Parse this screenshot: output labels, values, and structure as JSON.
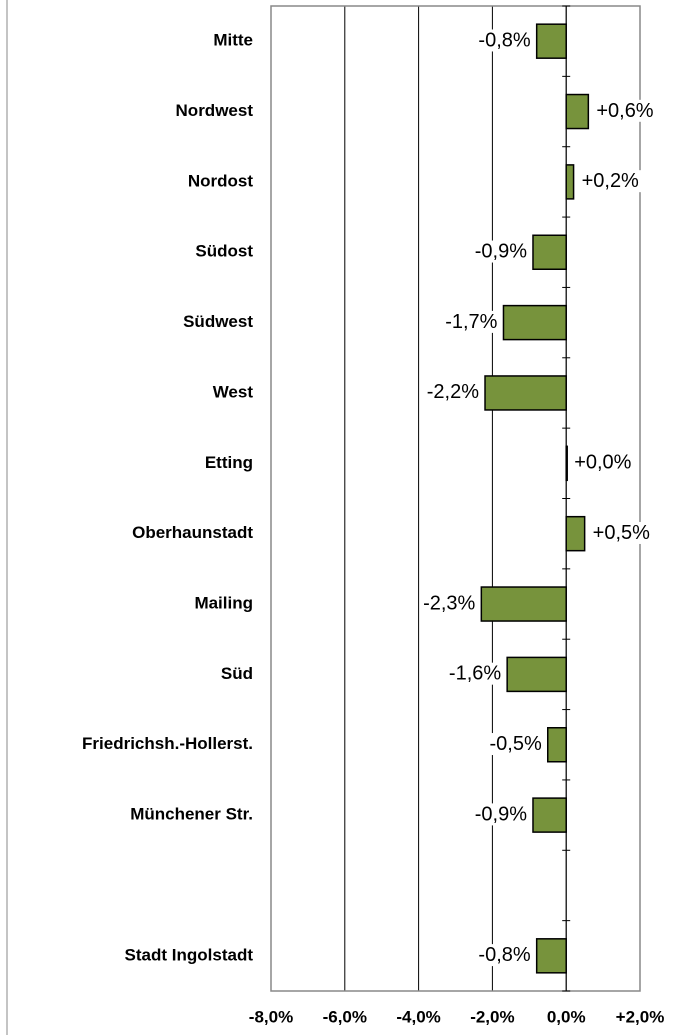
{
  "chart_data": {
    "type": "bar",
    "orientation": "horizontal",
    "categories": [
      "Mitte",
      "Nordwest",
      "Nordost",
      "Südost",
      "Südwest",
      "West",
      "Etting",
      "Oberhaunstadt",
      "Mailing",
      "Süd",
      "Friedrichsh.-Hollerst.",
      "Münchener Str.",
      null,
      "Stadt Ingolstadt"
    ],
    "values": [
      -0.8,
      0.6,
      0.2,
      -0.9,
      -1.7,
      -2.2,
      0.0,
      0.5,
      -2.3,
      -1.6,
      -0.5,
      -0.9,
      null,
      -0.8
    ],
    "value_labels": [
      "-0,8%",
      "+0,6%",
      "+0,2%",
      "-0,9%",
      "-1,7%",
      "-2,2%",
      "+0,0%",
      "+0,5%",
      "-2,3%",
      "-1,6%",
      "-0,5%",
      "-0,9%",
      null,
      "-0,8%"
    ],
    "color": "#77933c",
    "xlim": [
      -8,
      2
    ],
    "xticks": [
      {
        "value": -8,
        "label": "-8,0%"
      },
      {
        "value": -6,
        "label": "-6,0%"
      },
      {
        "value": -4,
        "label": "-4,0%"
      },
      {
        "value": -2,
        "label": "-2,0%"
      },
      {
        "value": 0,
        "label": "0,0%"
      },
      {
        "value": 2,
        "label": "+2,0%"
      }
    ],
    "grid": true
  }
}
